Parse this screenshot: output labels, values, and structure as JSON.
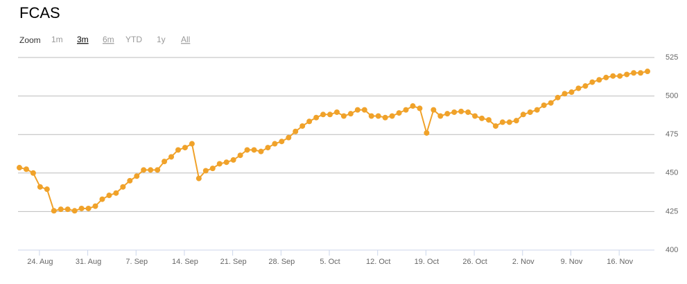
{
  "chart_data": {
    "type": "line",
    "title": "FCAS",
    "zoom_label": "Zoom",
    "zoom_buttons": [
      "1m",
      "3m",
      "6m",
      "YTD",
      "1y",
      "All"
    ],
    "zoom_states": [
      "disabled",
      "selected",
      "enabled",
      "disabled",
      "disabled",
      "enabled"
    ],
    "categories": [
      null,
      null,
      null,
      "24. Aug",
      null,
      null,
      null,
      null,
      null,
      null,
      "31. Aug",
      null,
      null,
      null,
      null,
      null,
      null,
      "7. Sep",
      null,
      null,
      null,
      null,
      null,
      null,
      "14. Sep",
      null,
      null,
      null,
      null,
      null,
      null,
      "21. Sep",
      null,
      null,
      null,
      null,
      null,
      null,
      "28. Sep",
      null,
      null,
      null,
      null,
      null,
      null,
      "5. Oct",
      null,
      null,
      null,
      null,
      null,
      null,
      "12. Oct",
      null,
      null,
      null,
      null,
      null,
      null,
      "19. Oct",
      null,
      null,
      null,
      null,
      null,
      null,
      "26. Oct",
      null,
      null,
      null,
      null,
      null,
      null,
      "2. Nov",
      null,
      null,
      null,
      null,
      null,
      null,
      "9. Nov",
      null,
      null,
      null,
      null,
      null,
      null,
      "16. Nov",
      null,
      null,
      null,
      null
    ],
    "values": [
      453.5,
      452.5,
      450,
      441,
      439.5,
      425.5,
      426.5,
      426.5,
      425.5,
      427,
      427,
      428.5,
      433,
      435.5,
      437,
      441,
      445,
      448,
      452,
      452,
      452,
      457.5,
      460.5,
      465,
      466.5,
      469,
      446.5,
      451.5,
      453,
      456,
      457,
      458.5,
      461.5,
      465,
      465,
      464,
      466.5,
      469,
      470.5,
      473,
      477,
      480.5,
      483.5,
      486,
      488,
      488,
      489.5,
      487,
      488.5,
      491,
      491,
      487,
      487,
      486,
      487,
      489,
      491,
      493.5,
      492,
      476,
      491,
      487,
      488.5,
      489.5,
      490,
      489.5,
      487,
      485.5,
      484.5,
      480.5,
      483,
      483,
      484,
      488,
      489.5,
      491,
      494,
      495.5,
      499,
      501.5,
      502.5,
      505,
      506.5,
      509,
      510.5,
      512,
      513,
      513,
      514,
      515,
      515,
      516
    ],
    "color": "#f0a22a",
    "ylim": [
      400,
      525
    ],
    "yticks": [
      400,
      425,
      450,
      475,
      500,
      525
    ],
    "grid": true
  }
}
